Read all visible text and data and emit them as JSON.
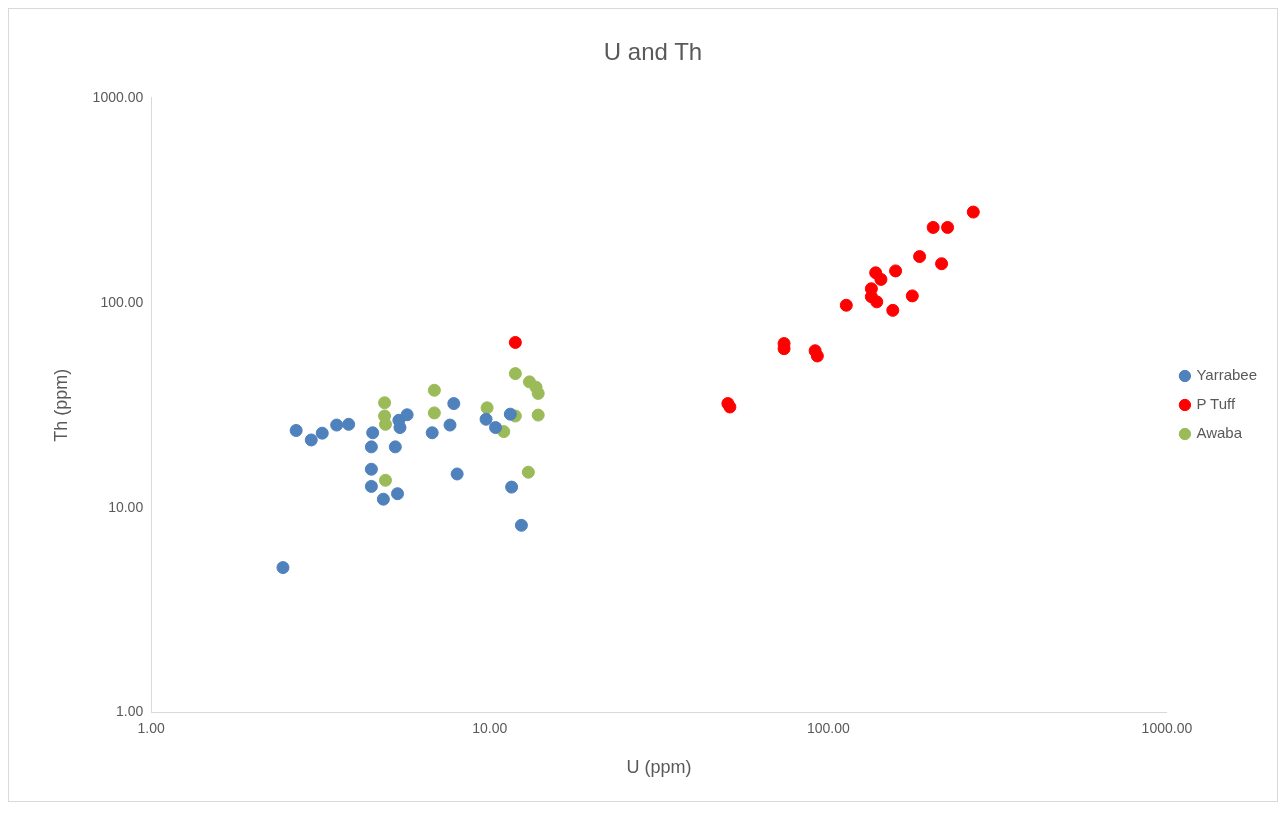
{
  "chart_data": {
    "type": "scatter",
    "title": "U and Th",
    "xlabel": "U (ppm)",
    "ylabel": "Th (ppm)",
    "log": "xy",
    "grid": false,
    "legend": "right",
    "marker": "circle",
    "xlim": [
      1,
      1000
    ],
    "ylim": [
      1,
      1000
    ],
    "xticks": [
      {
        "value": 1,
        "label": "1.00"
      },
      {
        "value": 10,
        "label": "10.00"
      },
      {
        "value": 100,
        "label": "100.00"
      },
      {
        "value": 1000,
        "label": "1000.00"
      }
    ],
    "yticks": [
      {
        "value": 1,
        "label": "1.00"
      },
      {
        "value": 10,
        "label": "10.00"
      },
      {
        "value": 100,
        "label": "100.00"
      },
      {
        "value": 1000,
        "label": "1000.00"
      }
    ],
    "series": [
      {
        "name": "Yarrabee",
        "color": "#4f81bd",
        "x": [
          2.45,
          2.68,
          2.97,
          3.2,
          3.53,
          3.83,
          4.47,
          4.47,
          4.47,
          4.51,
          4.85,
          5.34,
          5.26,
          5.43,
          5.39,
          5.7,
          6.76,
          7.63,
          7.83,
          8.01,
          9.75,
          10.4,
          11.5,
          11.6,
          12.4
        ],
        "values": [
          5.1,
          23.8,
          21.4,
          23.1,
          25.3,
          25.5,
          12.7,
          15.4,
          19.8,
          23.2,
          11.0,
          11.7,
          19.8,
          24.6,
          26.7,
          28.4,
          23.2,
          25.3,
          32.2,
          14.6,
          27.0,
          24.6,
          28.6,
          12.6,
          8.2
        ]
      },
      {
        "name": "P Tuff",
        "color": "#ff0000",
        "x": [
          11.9,
          50.5,
          51.2,
          74,
          74,
          91.4,
          92.8,
          113,
          134,
          134,
          139,
          138,
          143,
          155,
          158,
          177,
          186,
          216,
          204,
          225,
          268
        ],
        "values": [
          64,
          32.2,
          31,
          63.2,
          59.7,
          58.3,
          55,
          97.2,
          117,
          107,
          101,
          140,
          130,
          91.8,
          143,
          108,
          168,
          155,
          233,
          233,
          277
        ]
      },
      {
        "name": "Awaba",
        "color": "#9bbb59",
        "x": [
          4.89,
          4.89,
          4.92,
          4.92,
          6.86,
          6.86,
          9.82,
          11.0,
          11.9,
          11.9,
          13.1,
          13.7,
          13.9,
          13.9,
          13.0
        ],
        "values": [
          32.5,
          28.0,
          25.5,
          13.6,
          37.4,
          29.0,
          30.7,
          23.5,
          28.0,
          45.1,
          41.1,
          38.7,
          36.1,
          28.3,
          14.9
        ]
      }
    ]
  }
}
